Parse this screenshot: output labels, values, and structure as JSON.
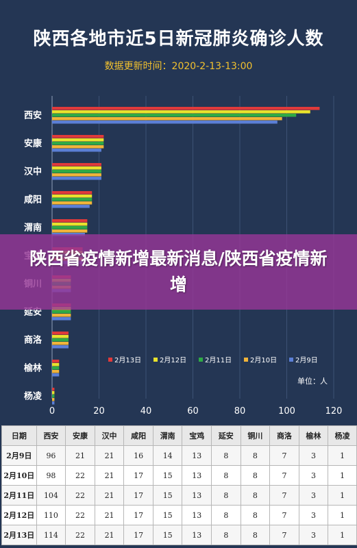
{
  "title": "陕西各地市近5日新冠肺炎确诊人数",
  "subtitle": "数据更新时间：2020-2-13-13:00",
  "banner": "陕西省疫情新增最新消息/陕西省疫情新增",
  "chart_data": {
    "type": "bar",
    "orientation": "horizontal",
    "categories": [
      "西安",
      "安康",
      "汉中",
      "咸阳",
      "渭南",
      "宝鸡",
      "铜川",
      "延安",
      "商洛",
      "榆林",
      "杨凌"
    ],
    "series": [
      {
        "name": "2月13日",
        "color": "#e03a3a",
        "values": [
          114,
          22,
          21,
          17,
          15,
          13,
          8,
          8,
          7,
          3,
          1
        ]
      },
      {
        "name": "2月12日",
        "color": "#e8e22c",
        "values": [
          110,
          22,
          21,
          17,
          15,
          13,
          8,
          8,
          7,
          3,
          1
        ]
      },
      {
        "name": "2月11日",
        "color": "#2faa45",
        "values": [
          104,
          22,
          21,
          17,
          15,
          13,
          8,
          8,
          7,
          3,
          1
        ]
      },
      {
        "name": "2月10日",
        "color": "#f0b43a",
        "values": [
          98,
          22,
          21,
          17,
          15,
          13,
          8,
          8,
          7,
          3,
          1
        ]
      },
      {
        "name": "2月9日",
        "color": "#5b7fd6",
        "values": [
          96,
          21,
          21,
          16,
          14,
          13,
          8,
          8,
          7,
          3,
          1
        ]
      }
    ],
    "xlim": [
      0,
      120
    ],
    "xticks": [
      0,
      20,
      40,
      60,
      80,
      100,
      120
    ],
    "unit_label": "单位：人",
    "grid": true,
    "legend_position": "bottom-right"
  },
  "table": {
    "headers": [
      "日期",
      "西安",
      "安康",
      "汉中",
      "咸阳",
      "渭南",
      "宝鸡",
      "延安",
      "铜川",
      "商洛",
      "榆林",
      "杨凌"
    ],
    "rows": [
      [
        "2月9日",
        "96",
        "21",
        "21",
        "16",
        "14",
        "13",
        "8",
        "8",
        "7",
        "3",
        "1"
      ],
      [
        "2月10日",
        "98",
        "22",
        "21",
        "17",
        "15",
        "13",
        "8",
        "8",
        "7",
        "3",
        "1"
      ],
      [
        "2月11日",
        "104",
        "22",
        "21",
        "17",
        "15",
        "13",
        "8",
        "8",
        "7",
        "3",
        "1"
      ],
      [
        "2月12日",
        "110",
        "22",
        "21",
        "17",
        "15",
        "13",
        "8",
        "8",
        "7",
        "3",
        "1"
      ],
      [
        "2月13日",
        "114",
        "22",
        "21",
        "17",
        "15",
        "13",
        "8",
        "8",
        "7",
        "3",
        "1"
      ]
    ]
  }
}
